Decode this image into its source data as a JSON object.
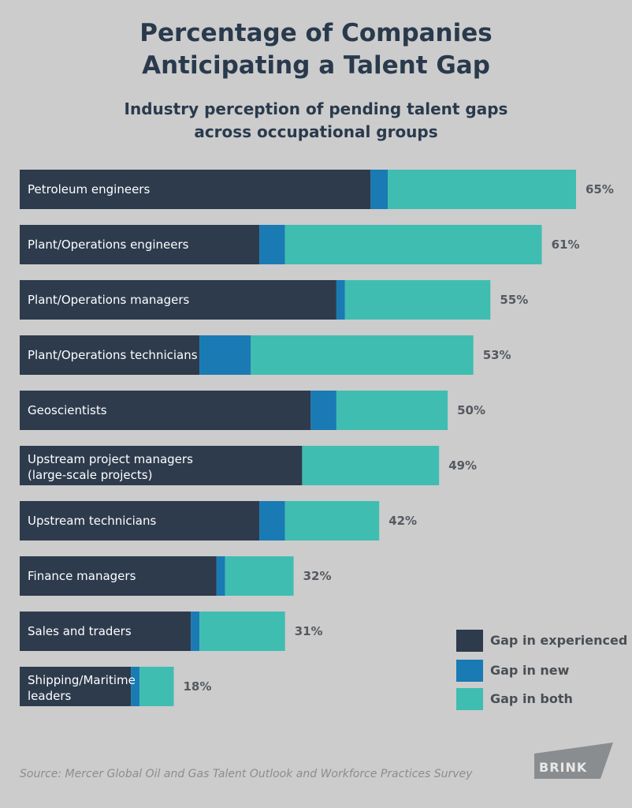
{
  "chart_data": {
    "type": "bar",
    "orientation": "horizontal",
    "stacked": true,
    "title": [
      "Percentage of Companies",
      "Anticipating a Talent Gap"
    ],
    "subtitle": [
      "Industry perception of pending talent gaps",
      "across occupational groups"
    ],
    "categories": [
      [
        "Petroleum engineers"
      ],
      [
        "Plant/Operations engineers"
      ],
      [
        "Plant/Operations managers"
      ],
      [
        "Plant/Operations technicians"
      ],
      [
        "Geoscientists"
      ],
      [
        "Upstream project managers",
        "(large-scale projects)"
      ],
      [
        "Upstream technicians"
      ],
      [
        "Finance managers"
      ],
      [
        "Sales and traders"
      ],
      [
        "Shipping/Maritime",
        "leaders"
      ]
    ],
    "series": [
      {
        "name": "Gap in experienced",
        "color": "#2d3b4d",
        "values": [
          41,
          28,
          37,
          21,
          34,
          33,
          28,
          23,
          20,
          13
        ]
      },
      {
        "name": "Gap in new",
        "color": "#1a7ab4",
        "values": [
          2,
          3,
          1,
          6,
          3,
          0,
          3,
          1,
          1,
          1
        ]
      },
      {
        "name": "Gap in both",
        "color": "#40bdb1",
        "values": [
          22,
          30,
          17,
          26,
          13,
          16,
          11,
          8,
          10,
          4
        ]
      }
    ],
    "totals": [
      "65%",
      "61%",
      "55%",
      "53%",
      "50%",
      "49%",
      "42%",
      "32%",
      "31%",
      "18%"
    ],
    "xlim": [
      0,
      65
    ]
  },
  "legend": {
    "items": [
      {
        "label": "Gap in experienced",
        "color": "#2d3b4d"
      },
      {
        "label": "Gap in new",
        "color": "#1a7ab4"
      },
      {
        "label": "Gap in both",
        "color": "#40bdb1"
      }
    ]
  },
  "source": "Source: Mercer Global Oil and Gas Talent Outlook and Workforce Practices Survey",
  "brand": "BRINK"
}
